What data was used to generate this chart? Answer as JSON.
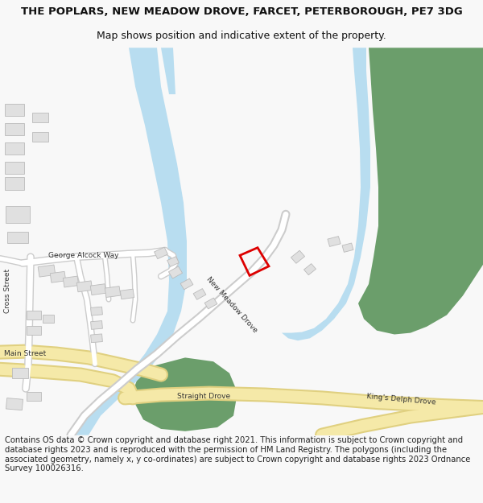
{
  "title": "THE POPLARS, NEW MEADOW DROVE, FARCET, PETERBOROUGH, PE7 3DG",
  "subtitle": "Map shows position and indicative extent of the property.",
  "footer": "Contains OS data © Crown copyright and database right 2021. This information is subject to Crown copyright and database rights 2023 and is reproduced with the permission of HM Land Registry. The polygons (including the associated geometry, namely x, y co-ordinates) are subject to Crown copyright and database rights 2023 Ordnance Survey 100026316.",
  "bg_color": "#f8f8f8",
  "map_bg": "#ffffff",
  "water_color": "#b8ddf0",
  "green_color": "#6b9e6b",
  "road_yellow": "#f5e9a8",
  "road_yellow_edge": "#e0d080",
  "building_color": "#e0e0e0",
  "building_edge": "#bbbbbb",
  "road_white": "#ffffff",
  "road_white_edge": "#cccccc",
  "plot_color": "#dd0000",
  "text_color": "#444444",
  "title_fontsize": 9.5,
  "subtitle_fontsize": 9,
  "footer_fontsize": 7.2
}
